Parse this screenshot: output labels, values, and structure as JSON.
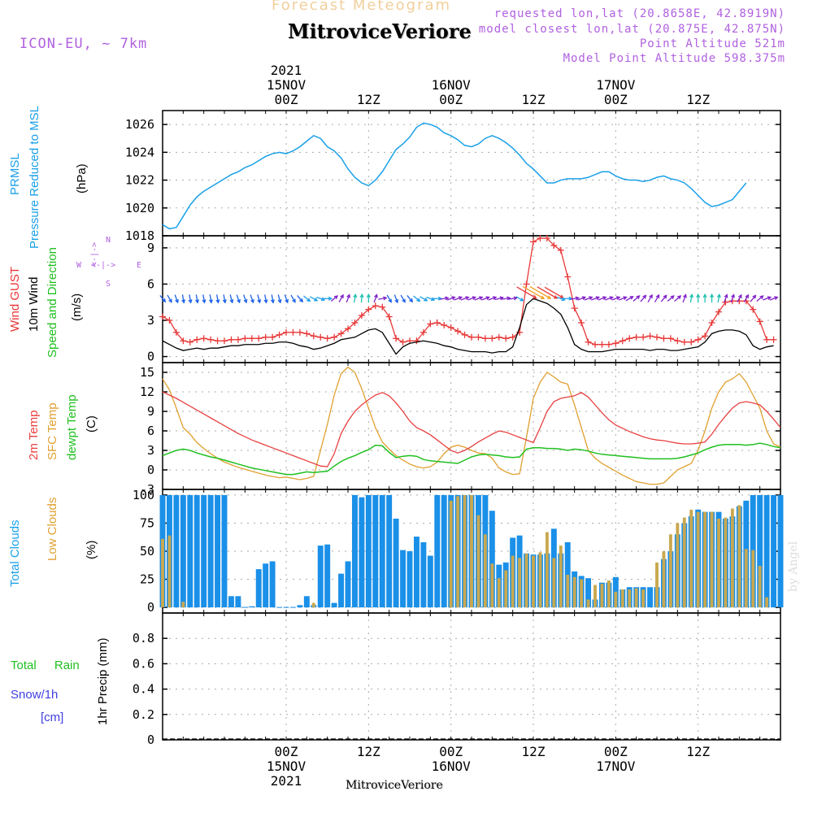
{
  "header": {
    "title_top": "Forecast Meteogram",
    "location": "MitroviceVeriore",
    "model": "ICON-EU, ~ 7km",
    "requested": "requested lon,lat (20.8658E, 42.8919N)",
    "closest": "model closest lon,lat (20.875E, 42.875N)",
    "point_alt": "Point Altitude 521m",
    "model_alt": "Model Point Altitude 598.375m"
  },
  "footer": {
    "location": "MitroviceVeriore",
    "credit": "by Angel"
  },
  "time_axis": {
    "top": [
      {
        "lines": [
          "2021",
          "15NOV",
          "00Z"
        ],
        "h": 0
      },
      {
        "lines": [
          "12Z"
        ],
        "h": 12
      },
      {
        "lines": [
          "16NOV",
          "00Z"
        ],
        "h": 24
      },
      {
        "lines": [
          "12Z"
        ],
        "h": 36
      },
      {
        "lines": [
          "17NOV",
          "00Z"
        ],
        "h": 48
      },
      {
        "lines": [
          "12Z"
        ],
        "h": 60
      }
    ],
    "bottom": [
      {
        "lines": [
          "00Z",
          "15NOV",
          "2021"
        ],
        "h": 0
      },
      {
        "lines": [
          "12Z"
        ],
        "h": 12
      },
      {
        "lines": [
          "00Z",
          "16NOV"
        ],
        "h": 24
      },
      {
        "lines": [
          "12Z"
        ],
        "h": 36
      },
      {
        "lines": [
          "00Z",
          "17NOV"
        ],
        "h": 48
      },
      {
        "lines": [
          "12Z"
        ],
        "h": 60
      }
    ]
  },
  "panel_labels": {
    "pressure": [
      "PRMSL",
      "Pressure Reduced to MSL",
      "(hPa)"
    ],
    "wind": [
      "Wind GUST",
      "10m Wind",
      "Speed and Direction",
      "(m/s)"
    ],
    "compass": [
      "N",
      "S",
      "W",
      "E",
      "<-|->"
    ],
    "temp": [
      "2m Temp",
      "SFC Temp",
      "dewpt Temp",
      "(C)"
    ],
    "clouds": [
      "Total Clouds",
      "Low Clouds",
      "(%)"
    ],
    "precip": [
      "Total",
      "Rain",
      "Snow/1h",
      "[cm]",
      "1hr Precip (mm)"
    ]
  },
  "colors": {
    "pressure": "#1aa0e8",
    "gust": "#e83838",
    "wind": "#000000",
    "t2m": "#e84040",
    "sfc": "#e0a030",
    "dew": "#20c020",
    "total_cloud": "#1a90e8",
    "low_cloud": "#c8a850",
    "rain": "#20c020",
    "snow": "#4040e0",
    "label_purple": "#b061e0"
  },
  "chart_data": [
    {
      "type": "line",
      "title": "PRMSL Pressure Reduced to MSL",
      "ylabel": "(hPa)",
      "ylim": [
        1018,
        1027
      ],
      "yticks": [
        1018,
        1020,
        1022,
        1024,
        1026
      ],
      "x_start_h": -18,
      "x_step_h": 1,
      "series": [
        {
          "name": "PRMSL",
          "values": [
            1018.8,
            1018.5,
            1018.6,
            1019.4,
            1020.2,
            1020.8,
            1021.2,
            1021.5,
            1021.8,
            1022.1,
            1022.4,
            1022.6,
            1022.9,
            1023.1,
            1023.4,
            1023.7,
            1023.9,
            1024.0,
            1023.9,
            1024.1,
            1024.4,
            1024.8,
            1025.2,
            1025.0,
            1024.4,
            1024.1,
            1023.6,
            1022.8,
            1022.2,
            1021.8,
            1021.6,
            1022.0,
            1022.6,
            1023.4,
            1024.2,
            1024.6,
            1025.1,
            1025.8,
            1026.1,
            1026.0,
            1025.8,
            1025.4,
            1025.2,
            1024.9,
            1024.5,
            1024.4,
            1024.6,
            1025.0,
            1025.2,
            1025.0,
            1024.7,
            1024.3,
            1023.8,
            1023.2,
            1022.8,
            1022.3,
            1021.8,
            1021.8,
            1022.0,
            1022.1,
            1022.1,
            1022.1,
            1022.2,
            1022.4,
            1022.6,
            1022.6,
            1022.3,
            1022.1,
            1022.0,
            1022.0,
            1021.9,
            1022.0,
            1022.2,
            1022.3,
            1022.1,
            1022.0,
            1021.8,
            1021.4,
            1020.9,
            1020.4,
            1020.1,
            1020.2,
            1020.4,
            1020.6,
            1021.2,
            1021.8
          ]
        }
      ]
    },
    {
      "type": "line",
      "title": "Wind GUST / 10m Wind Speed and Direction",
      "ylabel": "(m/s)",
      "ylim": [
        -0.5,
        10
      ],
      "yticks": [
        0,
        3,
        6,
        9
      ],
      "x_start_h": -18,
      "x_step_h": 1,
      "series": [
        {
          "name": "Wind GUST",
          "values": [
            3.3,
            3.0,
            2.0,
            1.3,
            1.2,
            1.4,
            1.5,
            1.4,
            1.3,
            1.3,
            1.4,
            1.4,
            1.5,
            1.5,
            1.5,
            1.6,
            1.6,
            1.8,
            2.0,
            2.0,
            2.0,
            1.9,
            1.7,
            1.6,
            1.5,
            1.6,
            1.9,
            2.3,
            2.8,
            3.4,
            3.9,
            4.2,
            4.1,
            3.3,
            1.5,
            1.2,
            1.3,
            1.3,
            2.0,
            2.7,
            2.8,
            2.6,
            2.4,
            2.1,
            1.8,
            1.6,
            1.6,
            1.5,
            1.5,
            1.6,
            1.5,
            1.6,
            2.0,
            6.0,
            9.5,
            9.8,
            9.8,
            9.2,
            8.8,
            6.6,
            4.0,
            2.8,
            1.2,
            1.0,
            1.0,
            1.0,
            1.1,
            1.3,
            1.5,
            1.6,
            1.6,
            1.7,
            1.6,
            1.5,
            1.5,
            1.3,
            1.2,
            1.2,
            1.4,
            1.7,
            2.8,
            3.7,
            4.5,
            4.6,
            4.6,
            4.6,
            3.9,
            2.9,
            1.4,
            1.4
          ]
        },
        {
          "name": "10m Wind",
          "values": [
            1.3,
            1.0,
            0.7,
            0.5,
            0.6,
            0.7,
            0.6,
            0.7,
            0.7,
            0.8,
            0.9,
            0.9,
            1.0,
            1.0,
            1.0,
            1.1,
            1.1,
            1.2,
            1.2,
            1.1,
            0.9,
            0.8,
            0.6,
            0.7,
            0.9,
            1.1,
            1.4,
            1.5,
            1.6,
            1.9,
            2.2,
            2.3,
            2.0,
            1.1,
            0.2,
            0.8,
            1.1,
            1.2,
            1.3,
            1.2,
            1.1,
            0.9,
            0.8,
            0.6,
            0.5,
            0.4,
            0.4,
            0.4,
            0.3,
            0.4,
            0.4,
            0.8,
            2.4,
            4.3,
            4.8,
            4.6,
            4.4,
            4.0,
            3.5,
            2.4,
            1.0,
            0.6,
            0.4,
            0.4,
            0.4,
            0.5,
            0.6,
            0.6,
            0.6,
            0.6,
            0.6,
            0.5,
            0.6,
            0.6,
            0.5,
            0.5,
            0.6,
            0.7,
            0.8,
            1.2,
            1.9,
            2.1,
            2.2,
            2.2,
            2.1,
            1.8,
            0.9,
            0.6,
            0.8,
            0.9
          ]
        },
        {
          "name": "10m Wind Direction (deg from)",
          "values": [
            320,
            330,
            340,
            350,
            350,
            350,
            350,
            350,
            350,
            350,
            345,
            340,
            340,
            340,
            345,
            350,
            350,
            345,
            340,
            330,
            320,
            310,
            300,
            290,
            270,
            230,
            210,
            200,
            190,
            185,
            180,
            200,
            260,
            330,
            340,
            330,
            320,
            310,
            300,
            290,
            270,
            260,
            250,
            250,
            250,
            250,
            250,
            250,
            250,
            255,
            260,
            260,
            300,
            300,
            300,
            300,
            300,
            300,
            290,
            270,
            260,
            250,
            250,
            250,
            250,
            250,
            250,
            250,
            240,
            230,
            220,
            210,
            210,
            220,
            230,
            230,
            200,
            190,
            180,
            180,
            180,
            190,
            200,
            200,
            210,
            210,
            220,
            230,
            250,
            250
          ]
        }
      ]
    },
    {
      "type": "line",
      "title": "2m Temp / SFC Temp / dewpt Temp",
      "ylabel": "(C)",
      "ylim": [
        -3,
        16.5
      ],
      "yticks": [
        -3,
        0,
        3,
        6,
        9,
        12,
        15
      ],
      "x_start_h": -18,
      "x_step_h": 1,
      "series": [
        {
          "name": "2m Temp",
          "values": [
            12.0,
            11.5,
            11.0,
            10.4,
            9.8,
            9.2,
            8.6,
            8.0,
            7.4,
            6.8,
            6.2,
            5.6,
            5.1,
            4.6,
            4.2,
            3.8,
            3.4,
            3.0,
            2.6,
            2.2,
            1.8,
            1.4,
            1.0,
            0.6,
            0.5,
            2.5,
            5.6,
            7.5,
            9.0,
            10.0,
            10.8,
            11.5,
            11.9,
            11.4,
            10.3,
            9.0,
            7.5,
            6.5,
            6.0,
            5.4,
            4.6,
            3.8,
            3.0,
            2.6,
            3.0,
            3.6,
            4.3,
            4.9,
            5.5,
            6.0,
            5.8,
            5.4,
            5.0,
            4.6,
            4.2,
            6.5,
            9.0,
            10.5,
            11.0,
            11.2,
            11.4,
            11.9,
            11.2,
            10.0,
            8.8,
            7.7,
            6.9,
            6.4,
            5.9,
            5.5,
            5.1,
            4.8,
            4.6,
            4.5,
            4.3,
            4.1,
            4.0,
            4.0,
            4.1,
            4.3,
            5.5,
            7.0,
            8.3,
            9.5,
            10.3,
            10.5,
            10.3,
            10.0,
            9.0,
            7.8,
            6.5
          ]
        },
        {
          "name": "SFC Temp",
          "values": [
            14.0,
            12.3,
            9.5,
            6.5,
            5.5,
            4.2,
            3.3,
            2.5,
            1.8,
            1.2,
            0.8,
            0.4,
            0.1,
            -0.2,
            -0.5,
            -0.8,
            -1.0,
            -1.2,
            -1.1,
            -1.3,
            -1.5,
            -1.3,
            -1.0,
            3.0,
            7.0,
            11.5,
            14.8,
            15.8,
            15.0,
            12.5,
            9.5,
            6.5,
            4.3,
            3.2,
            2.2,
            1.5,
            0.9,
            0.5,
            0.3,
            0.5,
            1.2,
            2.5,
            3.5,
            3.8,
            3.5,
            3.0,
            2.6,
            2.5,
            1.8,
            0.3,
            -0.3,
            -0.7,
            -0.6,
            5.0,
            11.0,
            13.5,
            15.0,
            14.3,
            13.5,
            13.2,
            10.0,
            6.5,
            3.0,
            1.8,
            1.0,
            0.4,
            -0.2,
            -0.8,
            -1.3,
            -1.8,
            -2.0,
            -2.2,
            -2.2,
            -2.0,
            -1.0,
            0.0,
            0.5,
            1.0,
            3.0,
            6.0,
            9.5,
            12.0,
            13.5,
            14.0,
            14.8,
            13.5,
            11.5,
            9.5,
            6.0,
            4.0,
            3.5
          ]
        },
        {
          "name": "dewpt Temp",
          "values": [
            2.2,
            2.6,
            3.0,
            3.2,
            3.0,
            2.6,
            2.3,
            2.0,
            1.8,
            1.5,
            1.2,
            0.9,
            0.6,
            0.3,
            0.1,
            -0.1,
            -0.3,
            -0.5,
            -0.7,
            -0.7,
            -0.5,
            -0.3,
            -0.4,
            -0.3,
            -0.2,
            0.6,
            1.3,
            1.8,
            2.2,
            2.7,
            3.1,
            3.8,
            3.7,
            2.7,
            1.9,
            2.1,
            2.2,
            2.1,
            1.6,
            1.4,
            1.3,
            1.2,
            1.1,
            1.0,
            1.5,
            2.0,
            2.3,
            2.4,
            2.3,
            2.2,
            2.0,
            1.9,
            2.0,
            3.2,
            3.4,
            3.4,
            3.3,
            3.3,
            3.2,
            3.0,
            3.2,
            3.1,
            2.9,
            2.6,
            2.4,
            2.3,
            2.2,
            2.1,
            2.0,
            1.9,
            1.8,
            1.7,
            1.7,
            1.7,
            1.7,
            1.8,
            2.0,
            2.3,
            2.6,
            3.1,
            3.5,
            3.8,
            3.9,
            3.9,
            3.9,
            3.8,
            3.9,
            4.1,
            3.9,
            3.6,
            3.4
          ]
        }
      ]
    },
    {
      "type": "bar",
      "title": "Total Clouds / Low Clouds",
      "ylabel": "(%)",
      "ylim": [
        -5,
        105
      ],
      "yticks": [
        0,
        25,
        50,
        75,
        100
      ],
      "x_start_h": -18,
      "x_step_h": 1,
      "series": [
        {
          "name": "Total Clouds",
          "values": [
            100,
            100,
            100,
            100,
            100,
            100,
            100,
            100,
            100,
            100,
            10,
            10,
            0,
            1,
            34,
            39,
            41,
            0,
            0,
            0,
            2,
            10,
            2,
            55,
            56,
            4,
            30,
            41,
            100,
            98,
            100,
            100,
            100,
            100,
            79,
            51,
            50,
            63,
            58,
            46,
            100,
            100,
            100,
            100,
            100,
            100,
            100,
            100,
            86,
            38,
            40,
            62,
            64,
            48,
            47,
            47,
            48,
            70,
            48,
            58,
            32,
            28,
            26,
            7,
            22,
            22,
            27,
            16,
            18,
            18,
            18,
            18,
            18,
            43,
            50,
            65,
            75,
            81,
            87,
            85,
            85,
            85,
            79,
            81,
            90,
            95,
            100,
            100,
            100,
            100,
            100
          ]
        },
        {
          "name": "Low Clouds",
          "values": [
            61,
            64,
            0,
            5,
            0,
            0,
            0,
            0,
            0,
            0,
            0,
            0,
            0,
            0,
            0,
            0,
            0,
            0,
            0,
            0,
            0,
            0,
            4,
            0,
            0,
            0,
            0,
            0,
            0,
            0,
            0,
            0,
            0,
            0,
            0,
            0,
            0,
            0,
            0,
            0,
            0,
            0,
            95,
            99,
            100,
            100,
            82,
            65,
            39,
            26,
            33,
            46,
            44,
            48,
            46,
            49,
            67,
            44,
            55,
            29,
            27,
            25,
            7,
            20,
            21,
            24,
            14,
            16,
            16,
            17,
            16,
            0,
            40,
            50,
            65,
            75,
            80,
            87,
            85,
            85,
            85,
            79,
            80,
            88,
            91,
            52,
            51,
            37,
            9,
            0,
            0
          ]
        }
      ]
    },
    {
      "type": "bar",
      "title": "Total Rain / Snow 1hr Precip",
      "ylabel": "1hr Precip (mm)",
      "ylim": [
        0,
        1
      ],
      "yticks": [
        0,
        0.2,
        0.4,
        0.6,
        0.8
      ],
      "series": [
        {
          "name": "Total Rain",
          "values": []
        },
        {
          "name": "Snow/1h",
          "values": []
        }
      ]
    }
  ]
}
